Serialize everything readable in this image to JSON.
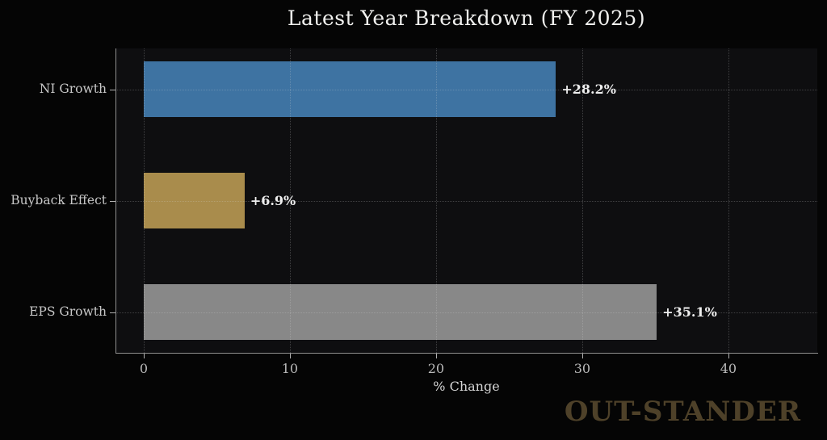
{
  "title": "Latest Year Breakdown (FY 2025)",
  "watermark": "OUT-STANDER",
  "chart_data": {
    "type": "bar",
    "orientation": "horizontal",
    "title": "Latest Year Breakdown (FY 2025)",
    "xlabel": "% Change",
    "ylabel": "",
    "categories": [
      "NI Growth",
      "Buyback Effect",
      "EPS Growth"
    ],
    "values": [
      28.2,
      6.9,
      35.1
    ],
    "value_labels": [
      "+28.2%",
      "+6.9%",
      "+35.1%"
    ],
    "bar_colors": [
      "#3e73a2",
      "#a98c4c",
      "#888888"
    ],
    "xticks": [
      0,
      10,
      20,
      30,
      40
    ],
    "xlim": [
      -1.93,
      46.08
    ],
    "grid": true,
    "grid_style": "dotted",
    "legend": "none",
    "plot_background": "#0e0e10",
    "page_background": "#050505",
    "spine_color": "#8f8f8f",
    "title_color": "#f0f0ee",
    "tick_label_color": "#b9b9b9",
    "category_label_color": "#c7c7c7",
    "value_label_color": "#eeeeee",
    "watermark_color": "#4e4129"
  }
}
